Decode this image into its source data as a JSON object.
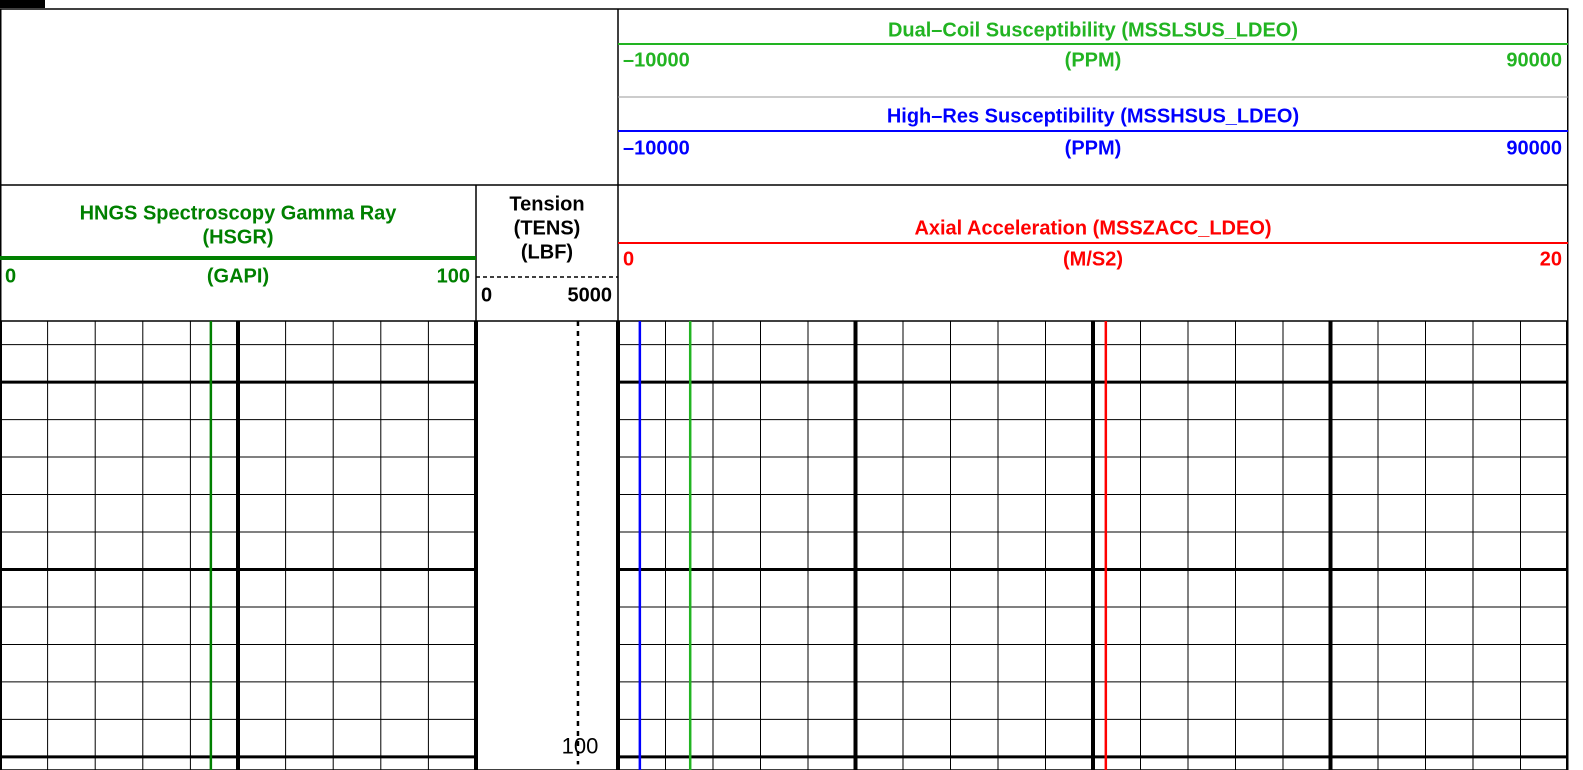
{
  "depth_axis": {
    "ylim": [
      88.37,
      100.35
    ],
    "grid": [
      89,
      90,
      91,
      92,
      93,
      94,
      95,
      96,
      97,
      98,
      99,
      100
    ],
    "major_grid": [
      90,
      95,
      100
    ],
    "labels": [
      100
    ]
  },
  "tracks": [
    {
      "divisions": 10,
      "major_every": 5,
      "curves": [
        {
          "title": [
            "HNGS Spectroscopy Gamma Ray",
            "(HSGR)"
          ],
          "unit": "(GAPI)",
          "xlim": [
            0,
            100
          ],
          "color": "#008000",
          "line": "solid",
          "depth": [
            88.37,
            100.35
          ],
          "values": [
            44.3,
            44.3
          ]
        }
      ]
    },
    {
      "divisions": 1,
      "major_every": 1,
      "curves": [
        {
          "title": [
            "Tension",
            "(TENS)"
          ],
          "unit": "(LBF)",
          "xlim": [
            0,
            5000
          ],
          "color": "#000000",
          "line": "dotted",
          "depth": [
            88.37,
            100.2
          ],
          "values": [
            3590,
            3590
          ]
        }
      ]
    },
    {
      "divisions": 20,
      "major_every": 5,
      "curves": [
        {
          "title": [
            "Dual–Coil Susceptibility (MSSLSUS_LDEO)"
          ],
          "unit": "(PPM)",
          "xlim": [
            {
              "value": -10000,
              "label": "–10000"
            },
            90000
          ],
          "color": "#22b422",
          "line": "solid",
          "depth": [
            88.37,
            100.35
          ],
          "values": [
            -2400,
            -2400
          ]
        },
        {
          "title": [
            "High–Res Susceptibility (MSSHSUS_LDEO)"
          ],
          "unit": "(PPM)",
          "xlim": [
            {
              "value": -10000,
              "label": "–10000"
            },
            90000
          ],
          "color": "#0000ff",
          "line": "solid",
          "depth": [
            88.37,
            100.35
          ],
          "values": [
            -7700,
            -7700
          ]
        },
        {
          "title": [
            "Axial Acceleration (MSSZACC_LDEO)"
          ],
          "unit": "(M/S2)",
          "xlim": [
            0,
            20
          ],
          "color": "#ff0000",
          "line": "solid",
          "depth": [
            88.37,
            100.35
          ],
          "values": [
            10.27,
            10.27
          ]
        }
      ]
    }
  ]
}
